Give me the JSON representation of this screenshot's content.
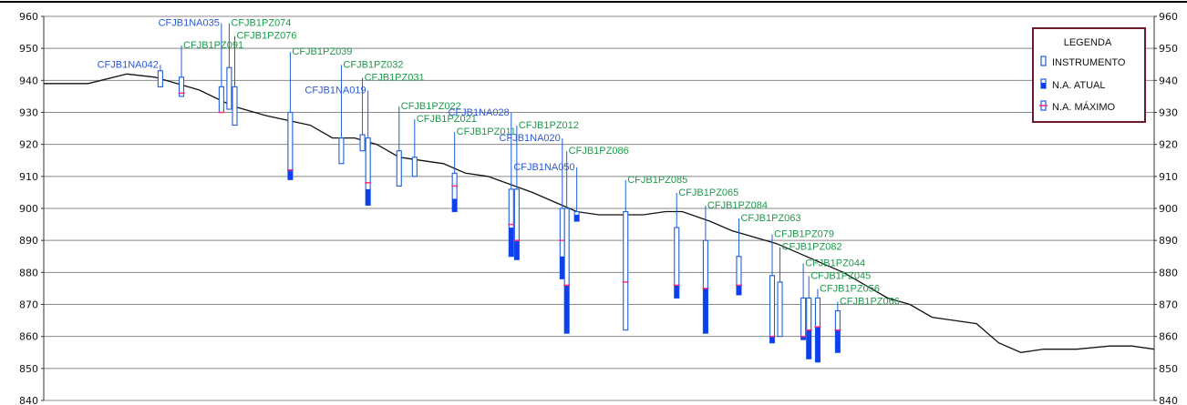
{
  "colors": {
    "instrument": "#1f5fd6",
    "na_atual": "#0b3ff0",
    "na_maximo": "#ff2a7a",
    "label_blue": "#2a58d8",
    "label_green": "#1d9a4a",
    "terrain": "#111111",
    "grid": "#888888",
    "legend_border": "#6b1a2a"
  },
  "chart_data": {
    "type": "profile",
    "ylim": [
      840,
      960
    ],
    "y_ticks": [
      "960",
      "950",
      "940",
      "930",
      "920",
      "910",
      "900",
      "890",
      "880",
      "870",
      "860",
      "850",
      "840"
    ],
    "legend": {
      "title": "LEGENDA",
      "items": [
        {
          "key": "instrument",
          "label": "INSTRUMENTO",
          "icon": "instrument-icon"
        },
        {
          "key": "na_atual",
          "label": "N.A.  ATUAL",
          "icon": "na-atual-icon"
        },
        {
          "key": "na_maximo",
          "label": "N.A.  MÁXIMO",
          "icon": "na-maximo-icon"
        }
      ]
    },
    "terrain_profile": [
      [
        0,
        939
      ],
      [
        2,
        939
      ],
      [
        4,
        939
      ],
      [
        7.5,
        942
      ],
      [
        10,
        941
      ],
      [
        14,
        937
      ],
      [
        17,
        932
      ],
      [
        20,
        929
      ],
      [
        24,
        926
      ],
      [
        26,
        922
      ],
      [
        28,
        922
      ],
      [
        30,
        920
      ],
      [
        32,
        916
      ],
      [
        34,
        915
      ],
      [
        36,
        914
      ],
      [
        38,
        911
      ],
      [
        40,
        910
      ],
      [
        44,
        905
      ],
      [
        46,
        902
      ],
      [
        48,
        899
      ],
      [
        50,
        898
      ],
      [
        52,
        898
      ],
      [
        54,
        898
      ],
      [
        56,
        899
      ],
      [
        57.5,
        899
      ],
      [
        60,
        896
      ],
      [
        62,
        893
      ],
      [
        64,
        891
      ],
      [
        66,
        889
      ],
      [
        68,
        886
      ],
      [
        70,
        883
      ],
      [
        72,
        880
      ],
      [
        74,
        876
      ],
      [
        76,
        872
      ],
      [
        78,
        870
      ],
      [
        80,
        866
      ],
      [
        82,
        865
      ],
      [
        84,
        864
      ],
      [
        86,
        858
      ],
      [
        88,
        855
      ],
      [
        90,
        856
      ],
      [
        93,
        856
      ],
      [
        96,
        857
      ],
      [
        98,
        857
      ],
      [
        100,
        856
      ]
    ],
    "instruments": [
      {
        "name": "CFJB1NA042",
        "type": "NA",
        "x": 10.5,
        "label_y": 944,
        "top": 943,
        "bottom": 938,
        "na_max": null,
        "na_atual": null
      },
      {
        "name": "CFJB1PZ091",
        "type": "PZ",
        "x": 12.4,
        "label_y": 950,
        "top": 941,
        "bottom": 935,
        "na_max": 936,
        "na_atual": null
      },
      {
        "name": "CFJB1NA035",
        "type": "NA",
        "x": 16.0,
        "label_y": 957,
        "top": 938,
        "bottom": 930,
        "na_max": 930,
        "na_atual": null
      },
      {
        "name": "CFJB1PZ074",
        "type": "PZ",
        "x": 16.7,
        "label_y": 957,
        "top": 944,
        "bottom": 931,
        "na_max": null,
        "na_atual": null
      },
      {
        "name": "CFJB1PZ076",
        "type": "PZ",
        "x": 17.2,
        "label_y": 953,
        "top": 938,
        "bottom": 926,
        "na_max": null,
        "na_atual": null
      },
      {
        "name": "CFJB1PZ039",
        "type": "PZ",
        "x": 22.2,
        "label_y": 948,
        "top": 930,
        "bottom": 909,
        "na_max": 912,
        "na_atual": 912
      },
      {
        "name": "CFJB1PZ032",
        "type": "PZ",
        "x": 26.8,
        "label_y": 944,
        "top": 922,
        "bottom": 914,
        "na_max": null,
        "na_atual": null
      },
      {
        "name": "CFJB1PZ031",
        "type": "PZ",
        "x": 28.7,
        "label_y": 940,
        "top": 923,
        "bottom": 918,
        "na_max": null,
        "na_atual": null
      },
      {
        "name": "CFJB1NA019",
        "type": "NA",
        "x": 29.2,
        "label_y": 936,
        "top": 922,
        "bottom": 901,
        "na_max": 908,
        "na_atual": 906
      },
      {
        "name": "CFJB1PZ022",
        "type": "PZ",
        "x": 32.0,
        "label_y": 931,
        "top": 918,
        "bottom": 907,
        "na_max": null,
        "na_atual": null
      },
      {
        "name": "CFJB1PZ021",
        "type": "PZ",
        "x": 33.4,
        "label_y": 927,
        "top": 916,
        "bottom": 910,
        "na_max": null,
        "na_atual": null
      },
      {
        "name": "CFJB1PZ011",
        "type": "PZ",
        "x": 37.0,
        "label_y": 923,
        "top": 911,
        "bottom": 899,
        "na_max": 907,
        "na_atual": 903
      },
      {
        "name": "CFJB1NA028",
        "type": "NA",
        "x": 42.1,
        "label_y": 929,
        "top": 906,
        "bottom": 885,
        "na_max": 895,
        "na_atual": 894
      },
      {
        "name": "CFJB1PZ012",
        "type": "PZ",
        "x": 42.6,
        "label_y": 925,
        "top": 906,
        "bottom": 884,
        "na_max": 890,
        "na_atual": 890
      },
      {
        "name": "CFJB1NA020",
        "type": "NA",
        "x": 46.7,
        "label_y": 921,
        "top": 900,
        "bottom": 878,
        "na_max": 890,
        "na_atual": 885
      },
      {
        "name": "CFJB1PZ086",
        "type": "PZ",
        "x": 47.1,
        "label_y": 917,
        "top": 900,
        "bottom": 861,
        "na_max": 876,
        "na_atual": 876
      },
      {
        "name": "CFJB1NA050",
        "type": "NA",
        "x": 48.0,
        "label_y": 912,
        "top": 899,
        "bottom": 896,
        "na_max": null,
        "na_atual": 898
      },
      {
        "name": "CFJB1PZ085",
        "type": "PZ",
        "x": 52.4,
        "label_y": 908,
        "top": 899,
        "bottom": 862,
        "na_max": 877,
        "na_atual": null
      },
      {
        "name": "CFJB1PZ065",
        "type": "PZ",
        "x": 57.0,
        "label_y": 904,
        "top": 894,
        "bottom": 872,
        "na_max": 876,
        "na_atual": 876
      },
      {
        "name": "CFJB1PZ084",
        "type": "PZ",
        "x": 59.6,
        "label_y": 900,
        "top": 890,
        "bottom": 861,
        "na_max": 875,
        "na_atual": 875
      },
      {
        "name": "CFJB1PZ063",
        "type": "PZ",
        "x": 62.6,
        "label_y": 896,
        "top": 885,
        "bottom": 873,
        "na_max": 876,
        "na_atual": 876
      },
      {
        "name": "CFJB1PZ079",
        "type": "PZ",
        "x": 65.6,
        "label_y": 891,
        "top": 879,
        "bottom": 858,
        "na_max": 860,
        "na_atual": 860
      },
      {
        "name": "CFJB1PZ082",
        "type": "PZ",
        "x": 66.3,
        "label_y": 887,
        "top": 877,
        "bottom": 860,
        "na_max": null,
        "na_atual": null
      },
      {
        "name": "CFJB1PZ044",
        "type": "PZ",
        "x": 68.4,
        "label_y": 882,
        "top": 872,
        "bottom": 859,
        "na_max": 860,
        "na_atual": 860
      },
      {
        "name": "CFJB1PZ045",
        "type": "PZ",
        "x": 68.9,
        "label_y": 878,
        "top": 872,
        "bottom": 853,
        "na_max": 862,
        "na_atual": 862
      },
      {
        "name": "CFJB1PZ056",
        "type": "PZ",
        "x": 69.7,
        "label_y": 874,
        "top": 872,
        "bottom": 852,
        "na_max": 863,
        "na_atual": 863
      },
      {
        "name": "CFJB1PZ066",
        "type": "PZ",
        "x": 71.5,
        "label_y": 870,
        "top": 868,
        "bottom": 855,
        "na_max": 862,
        "na_atual": 862
      }
    ]
  }
}
